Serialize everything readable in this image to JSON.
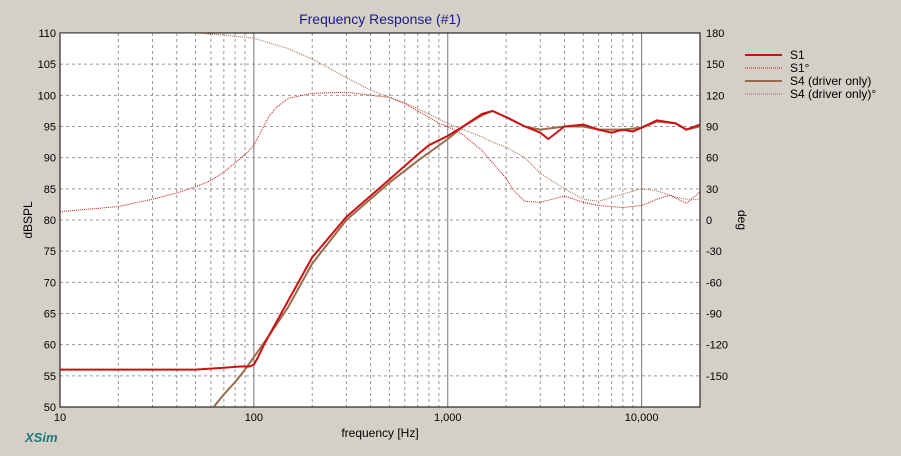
{
  "app": {
    "brand": "XSim"
  },
  "chart_data": {
    "type": "line",
    "title": "Frequency Response (#1)",
    "xlabel": "frequency [Hz]",
    "ylabel": "dBSPL",
    "y2label": "deg",
    "xscale": "log",
    "xlim": [
      10,
      20000
    ],
    "ylim": [
      50,
      110
    ],
    "y2lim": [
      -180,
      180
    ],
    "grid": true,
    "legend_position": "right",
    "x_ticks": [
      {
        "value": 10,
        "label": "10"
      },
      {
        "value": 100,
        "label": "100"
      },
      {
        "value": 1000,
        "label": "1,000"
      },
      {
        "value": 10000,
        "label": "10,000"
      }
    ],
    "y_ticks": [
      {
        "value": 50,
        "label": "50"
      },
      {
        "value": 55,
        "label": "55"
      },
      {
        "value": 60,
        "label": "60"
      },
      {
        "value": 65,
        "label": "65"
      },
      {
        "value": 70,
        "label": "70"
      },
      {
        "value": 75,
        "label": "75"
      },
      {
        "value": 80,
        "label": "80"
      },
      {
        "value": 85,
        "label": "85"
      },
      {
        "value": 90,
        "label": "90"
      },
      {
        "value": 95,
        "label": "95"
      },
      {
        "value": 100,
        "label": "100"
      },
      {
        "value": 105,
        "label": "105"
      },
      {
        "value": 110,
        "label": "110"
      }
    ],
    "y2_ticks": [
      {
        "value": 180,
        "label": "180"
      },
      {
        "value": 150,
        "label": "150"
      },
      {
        "value": 120,
        "label": "120"
      },
      {
        "value": 90,
        "label": "90"
      },
      {
        "value": 60,
        "label": "60"
      },
      {
        "value": 30,
        "label": "30"
      },
      {
        "value": 0,
        "label": "0"
      },
      {
        "value": -30,
        "label": "-30"
      },
      {
        "value": -60,
        "label": "-60"
      },
      {
        "value": -90,
        "label": "-90"
      },
      {
        "value": -120,
        "label": "-120"
      },
      {
        "value": -150,
        "label": "-150"
      }
    ],
    "series": [
      {
        "name": "S1",
        "axis": "left",
        "color": "#cc1111",
        "style": "solid",
        "width": 2,
        "x": [
          10,
          20,
          50,
          70,
          85,
          95,
          100,
          105,
          115,
          130,
          150,
          200,
          300,
          500,
          700,
          800,
          1000,
          1200,
          1500,
          1700,
          2000,
          2500,
          3000,
          3300,
          4000,
          5000,
          6000,
          7000,
          8000,
          9000,
          10000,
          12000,
          15000,
          17000,
          20000
        ],
        "y": [
          56,
          56,
          56,
          56.3,
          56.5,
          56.5,
          56.8,
          58,
          60.5,
          63.5,
          67,
          74,
          80.5,
          86.5,
          90.5,
          92,
          93.5,
          95,
          97,
          97.5,
          96.5,
          95,
          94,
          93,
          95,
          95.3,
          94.5,
          94,
          94.5,
          94.2,
          94.8,
          96,
          95.5,
          94.5,
          95.3
        ]
      },
      {
        "name": "S1°",
        "axis": "right",
        "color": "#cc1111",
        "style": "dotted",
        "width": 1,
        "x": [
          10,
          20,
          30,
          40,
          50,
          60,
          70,
          80,
          90,
          100,
          110,
          120,
          130,
          150,
          200,
          300,
          400,
          500,
          600,
          700,
          800,
          900,
          1000,
          1200,
          1500,
          2000,
          2200,
          2500,
          3000,
          4000,
          5000,
          6000,
          8000,
          10000,
          12000,
          14000,
          17000,
          20000
        ],
        "y": [
          8,
          13,
          20,
          26,
          32,
          38,
          46,
          55,
          63,
          72,
          87,
          100,
          108,
          117,
          122,
          123,
          120,
          118,
          112,
          105,
          99,
          93,
          90,
          82,
          67,
          40,
          28,
          18,
          17,
          23,
          17,
          14,
          12,
          14,
          20,
          24,
          16,
          27
        ]
      },
      {
        "name": "S4 (driver only)",
        "axis": "left",
        "color": "#9a6b4b",
        "style": "solid",
        "width": 2,
        "x": [
          62,
          70,
          80,
          90,
          100,
          120,
          150,
          200,
          300,
          500,
          700,
          1000,
          1200,
          1500,
          1700,
          2000,
          2500,
          3000,
          4000,
          5000,
          6000,
          8000,
          10000,
          12000,
          15000,
          17000,
          20000
        ],
        "y": [
          50,
          52,
          54,
          56,
          58,
          61.5,
          66,
          73,
          80,
          86,
          89.5,
          93,
          95,
          96.8,
          97.5,
          96.5,
          95,
          94.5,
          95,
          95,
          94.5,
          94.5,
          94.8,
          95.8,
          95.5,
          94.5,
          95
        ]
      },
      {
        "name": "S4 (driver only)°",
        "axis": "right",
        "color": "#9a6b4b",
        "style": "dotted",
        "width": 1,
        "x": [
          10,
          30,
          50,
          70,
          100,
          150,
          200,
          300,
          400,
          500,
          600,
          700,
          800,
          900,
          1000,
          1200,
          1500,
          1700,
          2000,
          2500,
          3000,
          4000,
          5000,
          6000,
          8000,
          10000,
          12000,
          15000,
          17000,
          20000
        ],
        "y": [
          180,
          180,
          180,
          178,
          175,
          165,
          155,
          137,
          125,
          118,
          113,
          107,
          102,
          97,
          93,
          87,
          80,
          75,
          70,
          60,
          45,
          30,
          20,
          18,
          25,
          30,
          28,
          22,
          20,
          20
        ]
      }
    ]
  }
}
